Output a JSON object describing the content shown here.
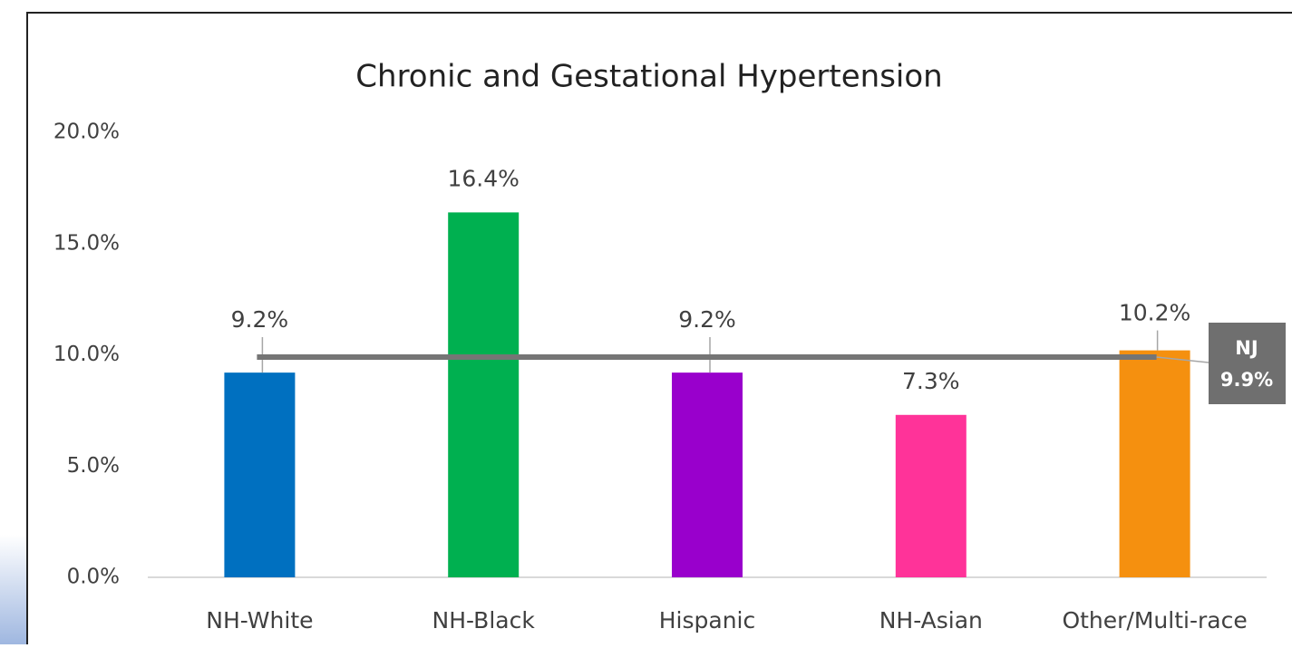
{
  "chart_data": {
    "type": "bar",
    "title": "Chronic and Gestational Hypertension",
    "categories": [
      "NH-White",
      "NH-Black",
      "Hispanic",
      "NH-Asian",
      "Other/Multi-race"
    ],
    "values": [
      9.2,
      16.4,
      9.2,
      7.3,
      10.2
    ],
    "value_labels": [
      "9.2%",
      "16.4%",
      "9.2%",
      "7.3%",
      "10.2%"
    ],
    "colors": [
      "#0070c0",
      "#00b050",
      "#9900cc",
      "#ff3399",
      "#f5900f"
    ],
    "ylim": [
      0,
      20
    ],
    "yticks": [
      {
        "value": 0,
        "label": "0.0%"
      },
      {
        "value": 5,
        "label": "5.0%"
      },
      {
        "value": 10,
        "label": "10.0%"
      },
      {
        "value": 15,
        "label": "15.0%"
      },
      {
        "value": 20,
        "label": "20.0%"
      }
    ],
    "grid": false,
    "reference_line": {
      "name": "NJ",
      "value": 9.9,
      "value_label": "9.9%",
      "color": "#757575"
    }
  }
}
